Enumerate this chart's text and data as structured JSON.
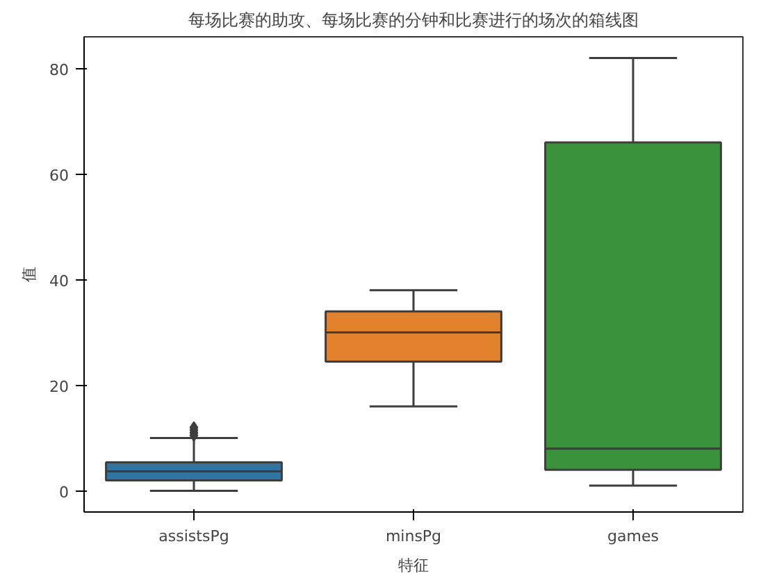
{
  "chart_data": {
    "type": "box",
    "title": "每场比赛的助攻、每场比赛的分钟和比赛进行的场次的箱线图",
    "xlabel": "特征",
    "ylabel": "值",
    "categories": [
      "assistsPg",
      "minsPg",
      "games"
    ],
    "series": [
      {
        "color": "#3274a1",
        "boxes": [
          {
            "low": 0,
            "q1": 2,
            "median": 3.7,
            "q3": 5.4,
            "high": 10,
            "outliers": [
              10.5,
              11,
              11.5,
              12
            ]
          },
          null,
          null
        ]
      },
      {
        "color": "#e1812c",
        "boxes": [
          null,
          {
            "low": 16,
            "q1": 24.5,
            "median": 30,
            "q3": 34,
            "high": 38
          },
          null
        ]
      },
      {
        "color": "#3a923a",
        "boxes": [
          null,
          null,
          {
            "low": 1,
            "q1": 4,
            "median": 8,
            "q3": 66,
            "high": 82
          }
        ]
      }
    ],
    "ylim": [
      -4,
      86
    ],
    "yticks": [
      0,
      20,
      40,
      60,
      80
    ],
    "grid": false
  }
}
